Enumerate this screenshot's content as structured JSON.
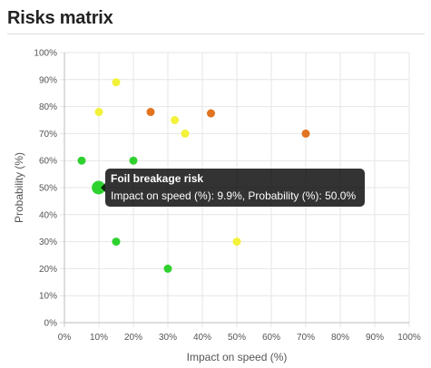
{
  "page": {
    "title": "Risks matrix"
  },
  "chart_data": {
    "type": "scatter",
    "xlabel": "Impact on speed (%)",
    "ylabel": "Probability (%)",
    "xlim": [
      0,
      100
    ],
    "ylim": [
      0,
      100
    ],
    "x_ticks": [
      "0%",
      "10%",
      "20%",
      "30%",
      "40%",
      "50%",
      "60%",
      "70%",
      "80%",
      "90%",
      "100%"
    ],
    "y_ticks": [
      "0%",
      "10%",
      "20%",
      "30%",
      "40%",
      "50%",
      "60%",
      "70%",
      "80%",
      "90%",
      "100%"
    ],
    "grid": true,
    "colors": {
      "green": "#2fd12f",
      "yellow": "#f2f23a",
      "orange": "#e2731f"
    },
    "points": [
      {
        "x": 15,
        "y": 89,
        "color": "yellow"
      },
      {
        "x": 10,
        "y": 78,
        "color": "yellow"
      },
      {
        "x": 25,
        "y": 78,
        "color": "orange"
      },
      {
        "x": 42.5,
        "y": 77.5,
        "color": "orange"
      },
      {
        "x": 32,
        "y": 75,
        "color": "yellow"
      },
      {
        "x": 35,
        "y": 70,
        "color": "yellow"
      },
      {
        "x": 70,
        "y": 70,
        "color": "orange"
      },
      {
        "x": 5,
        "y": 60,
        "color": "green"
      },
      {
        "x": 20,
        "y": 60,
        "color": "green"
      },
      {
        "x": 9.9,
        "y": 50,
        "color": "green",
        "highlighted": true
      },
      {
        "x": 15,
        "y": 30,
        "color": "green"
      },
      {
        "x": 50,
        "y": 30,
        "color": "yellow"
      },
      {
        "x": 30,
        "y": 20,
        "color": "green"
      }
    ],
    "tooltip": {
      "title": "Foil breakage risk",
      "body": "Impact on speed (%): 9.9%, Probability (%): 50.0%"
    }
  }
}
